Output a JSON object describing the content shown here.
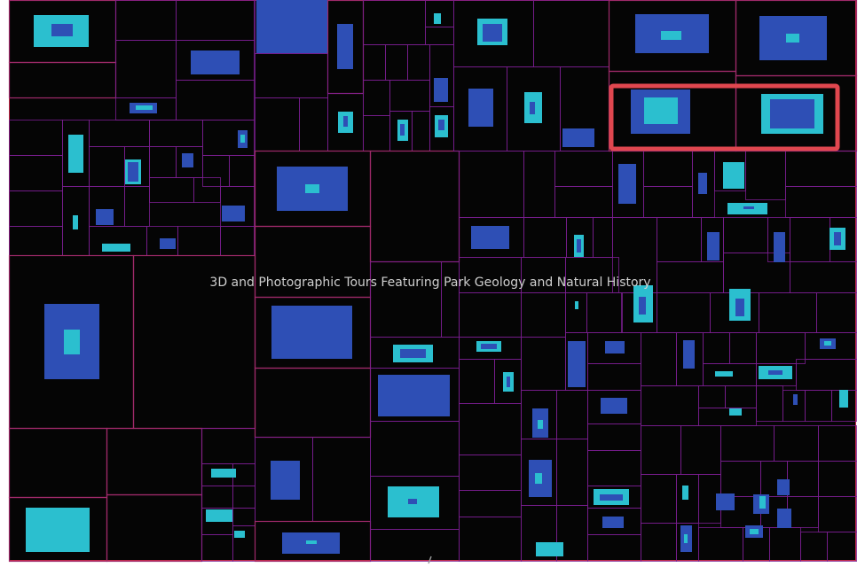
{
  "treemap": {
    "center_label": "3D and Photographic Tours Featuring Park Geology and Natural History"
  },
  "colors": {
    "background": "#050505",
    "cell_border": "#7a1f8f",
    "frame_border": "#c42a4a",
    "highlight": "#e0474f",
    "block_blue": "#2e4fb5",
    "block_cyan": "#2bbfcf",
    "label": "#cfcfcf"
  },
  "highlight": {
    "selected": true
  }
}
